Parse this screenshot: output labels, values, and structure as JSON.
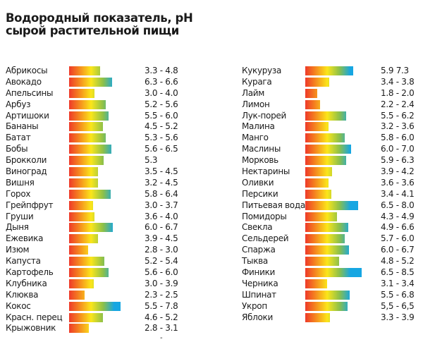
{
  "title_line1": "Водородный показатель, pH",
  "title_line2": "сырой растительной пищи",
  "footer_mark": "-",
  "colors": {
    "red": "#ee3a2a",
    "orange": "#f47a20",
    "yellow": "#fbe61a",
    "green": "#8cc04a",
    "blue": "#16a6e2"
  },
  "chart_data": {
    "type": "bar",
    "title": "Водородный показатель, pH сырой растительной пищи",
    "xlabel": "pH",
    "ylabel": "",
    "orientation": "horizontal",
    "grid": false,
    "xlim": [
      0,
      9
    ],
    "columns": [
      {
        "items": [
          {
            "name": "Абрикосы",
            "label": "3.3 - 4.8",
            "min": 3.3,
            "max": 4.8
          },
          {
            "name": "Авокадо",
            "label": "6.3 - 6.6",
            "min": 6.3,
            "max": 6.6
          },
          {
            "name": "Апельсины",
            "label": "3.0 - 4.0",
            "min": 3.0,
            "max": 4.0
          },
          {
            "name": "Арбуз",
            "label": "5.2 - 5.6",
            "min": 5.2,
            "max": 5.6
          },
          {
            "name": "Артишоки",
            "label": "5.5 - 6.0",
            "min": 5.5,
            "max": 6.0
          },
          {
            "name": "Бананы",
            "label": "4.5 - 5.2",
            "min": 4.5,
            "max": 5.2
          },
          {
            "name": "Батат",
            "label": "5.3 - 5.6",
            "min": 5.3,
            "max": 5.6
          },
          {
            "name": "Бобы",
            "label": "5.6 - 6.5",
            "min": 5.6,
            "max": 6.5
          },
          {
            "name": "Брокколи",
            "label": "5.3",
            "min": 5.3,
            "max": 5.3
          },
          {
            "name": "Виноград",
            "label": "3.5 - 4.5",
            "min": 3.5,
            "max": 4.5
          },
          {
            "name": "Вишня",
            "label": "3.2 - 4.5",
            "min": 3.2,
            "max": 4.5
          },
          {
            "name": "Горох",
            "label": "5.8 - 6.4",
            "min": 5.8,
            "max": 6.4
          },
          {
            "name": "Грейпфрут",
            "label": "3.0 - 3.7",
            "min": 3.0,
            "max": 3.7
          },
          {
            "name": "Груши",
            "label": "3.6 - 4.0",
            "min": 3.6,
            "max": 4.0
          },
          {
            "name": "Дыня",
            "label": "6.0 - 6.7",
            "min": 6.0,
            "max": 6.7
          },
          {
            "name": "Ежевика",
            "label": "3.9 - 4.5",
            "min": 3.9,
            "max": 4.5
          },
          {
            "name": "Изюм",
            "label": "2.8 - 3.0",
            "min": 2.8,
            "max": 3.0
          },
          {
            "name": "Капуста",
            "label": "5.2 - 5.4",
            "min": 5.2,
            "max": 5.4
          },
          {
            "name": "Картофель",
            "label": "5.6 - 6.0",
            "min": 5.6,
            "max": 6.0
          },
          {
            "name": "Клубника",
            "label": "3.0 - 3.9",
            "min": 3.0,
            "max": 3.9
          },
          {
            "name": "Клюква",
            "label": "2.3 - 2.5",
            "min": 2.3,
            "max": 2.5
          },
          {
            "name": "Кокос",
            "label": "5.5 - 7.8",
            "min": 5.5,
            "max": 7.8
          },
          {
            "name": "Красн. перец",
            "label": "4.6 - 5.2",
            "min": 4.6,
            "max": 5.2
          },
          {
            "name": "Крыжовник",
            "label": "2.8 - 3.1",
            "min": 2.8,
            "max": 3.1
          }
        ]
      },
      {
        "items": [
          {
            "name": "Кукуруза",
            "label": "5.9   7.3",
            "min": 5.9,
            "max": 7.3
          },
          {
            "name": "Курага",
            "label": "3.4 - 3.8",
            "min": 3.4,
            "max": 3.8
          },
          {
            "name": "Лайм",
            "label": "1.8 - 2.0",
            "min": 1.8,
            "max": 2.0
          },
          {
            "name": "Лимон",
            "label": "2.2 - 2.4",
            "min": 2.2,
            "max": 2.4
          },
          {
            "name": "Лук-порей",
            "label": "5.5 - 6.2",
            "min": 5.5,
            "max": 6.2
          },
          {
            "name": "Малина",
            "label": "3.2 - 3.6",
            "min": 3.2,
            "max": 3.6
          },
          {
            "name": "Манго",
            "label": "5.8 - 6.0",
            "min": 5.8,
            "max": 6.0
          },
          {
            "name": "Маслины",
            "label": "6.0 - 7.0",
            "min": 6.0,
            "max": 7.0
          },
          {
            "name": "Морковь",
            "label": "5.9 - 6.3",
            "min": 5.9,
            "max": 6.3
          },
          {
            "name": "Нектарины",
            "label": "3.9 - 4.2",
            "min": 3.9,
            "max": 4.2
          },
          {
            "name": "Оливки",
            "label": "3.6 - 3.6",
            "min": 3.6,
            "max": 3.6
          },
          {
            "name": "Персики",
            "label": "3.4 - 4.1",
            "min": 3.4,
            "max": 4.1
          },
          {
            "name": "Питьевая вода",
            "label": "6.5 - 8.0",
            "min": 6.5,
            "max": 8.0
          },
          {
            "name": "Помидоры",
            "label": "4.3 - 4.9",
            "min": 4.3,
            "max": 4.9
          },
          {
            "name": "Свекла",
            "label": "4.9 - 6.6",
            "min": 4.9,
            "max": 6.6
          },
          {
            "name": "Сельдерей",
            "label": "5.7 - 6.0",
            "min": 5.7,
            "max": 6.0
          },
          {
            "name": "Спаржа",
            "label": "6.0 - 6.7",
            "min": 6.0,
            "max": 6.7
          },
          {
            "name": "Тыква",
            "label": "4.8 - 5.2",
            "min": 4.8,
            "max": 5.2
          },
          {
            "name": "Финики",
            "label": "6.5 - 8.5",
            "min": 6.5,
            "max": 8.5
          },
          {
            "name": "Черника",
            "label": "3.1 - 3.4",
            "min": 3.1,
            "max": 3.4
          },
          {
            "name": "Шпинат",
            "label": "5.5 - 6.8",
            "min": 5.5,
            "max": 6.8
          },
          {
            "name": "Укроп",
            "label": "5,5 - 6,5",
            "min": 5.5,
            "max": 6.5
          },
          {
            "name": "Яблоки",
            "label": "3.3 - 3.9",
            "min": 3.3,
            "max": 3.9
          }
        ]
      }
    ]
  }
}
